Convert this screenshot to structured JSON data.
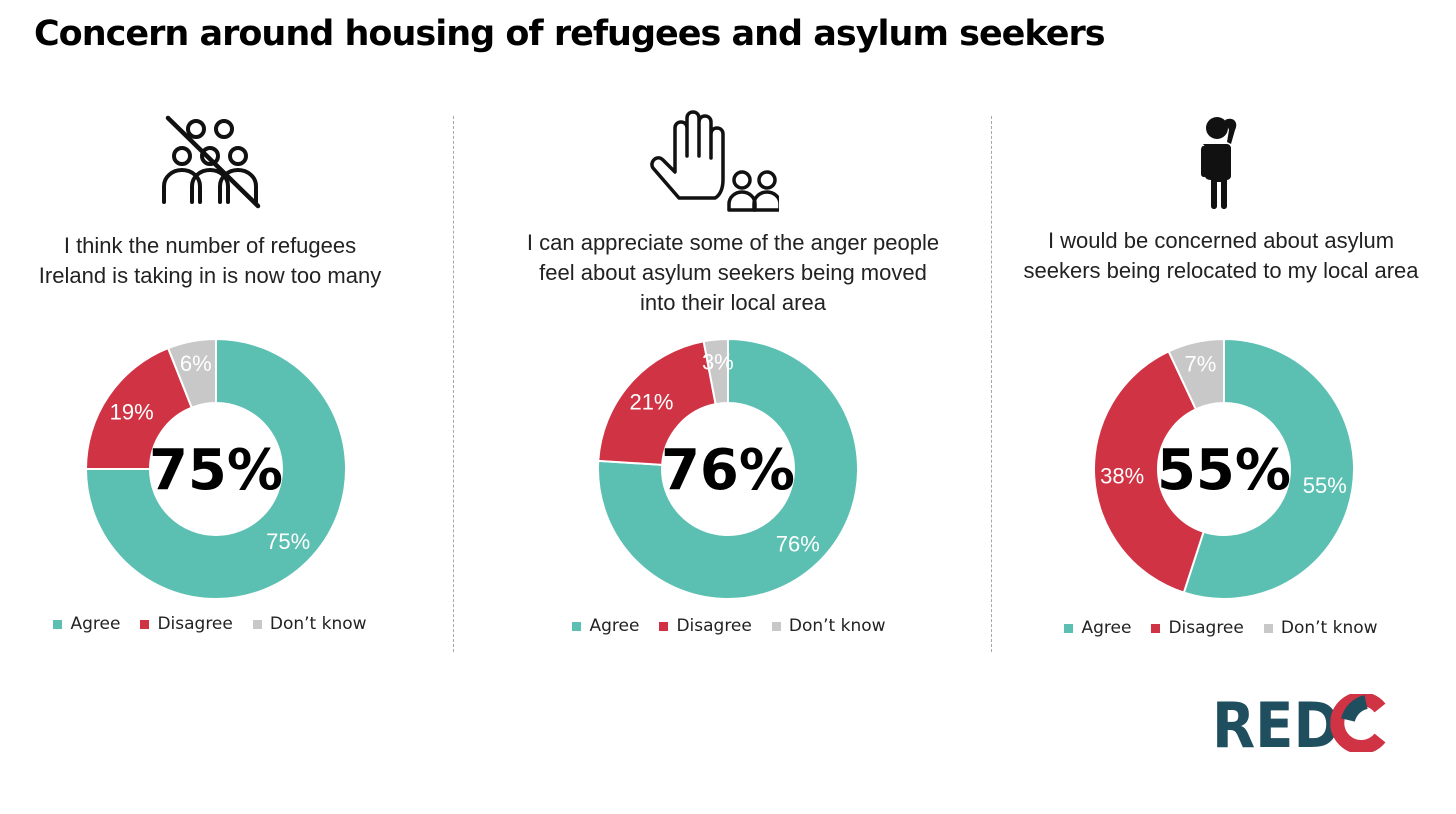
{
  "title": "Concern around housing of refugees and asylum seekers",
  "colors": {
    "agree": "#5bbfb1",
    "disagree": "#d03344",
    "dont_know": "#c8c8c8",
    "logo_dark": "#1f4e5f",
    "logo_red": "#d03344"
  },
  "legend": {
    "agree": "Agree",
    "disagree": "Disagree",
    "dont_know": "Don’t know"
  },
  "logo": {
    "text": "REDC"
  },
  "chart_data": [
    {
      "type": "pie",
      "title": "I think the number of refugees Ireland is taking in is now too many",
      "icon": "no-people-icon",
      "categories": [
        "Agree",
        "Disagree",
        "Don’t know"
      ],
      "values": [
        75,
        19,
        6
      ],
      "labels": [
        "75%",
        "19%",
        "6%"
      ],
      "center_value": "75%"
    },
    {
      "type": "pie",
      "title": "I can appreciate some of the anger people feel about asylum seekers being moved into their local area",
      "icon": "raised-hand-people-icon",
      "categories": [
        "Agree",
        "Disagree",
        "Don’t know"
      ],
      "values": [
        76,
        21,
        3
      ],
      "labels": [
        "76%",
        "21%",
        "3%"
      ],
      "center_value": "76%"
    },
    {
      "type": "pie",
      "title": "I would be concerned about asylum seekers being relocated to my local area",
      "icon": "worried-person-icon",
      "categories": [
        "Agree",
        "Disagree",
        "Don’t know"
      ],
      "values": [
        55,
        38,
        7
      ],
      "labels": [
        "55%",
        "38%",
        "7%"
      ],
      "center_value": "55%"
    }
  ]
}
